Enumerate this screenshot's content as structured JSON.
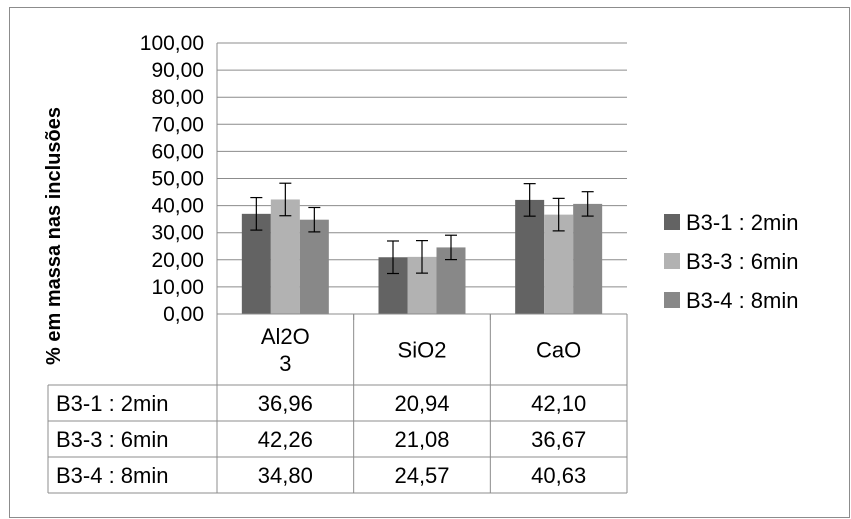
{
  "chart_data": {
    "type": "bar",
    "title": "",
    "ylabel": "% em massa nas inclusões",
    "xlabel": "",
    "ylim": [
      0,
      100
    ],
    "ytick_labels": [
      "0,00",
      "10,00",
      "20,00",
      "30,00",
      "40,00",
      "50,00",
      "60,00",
      "70,00",
      "80,00",
      "90,00",
      "100,00"
    ],
    "categories": [
      [
        "Al2O",
        "3"
      ],
      [
        "SiO2"
      ],
      [
        "CaO"
      ]
    ],
    "series": [
      {
        "name": "B3-1 : 2min",
        "values": [
          36.96,
          20.94,
          42.1
        ],
        "labels": [
          "36,96",
          "20,94",
          "42,10"
        ],
        "error": [
          6,
          6,
          6
        ],
        "color": "#636363"
      },
      {
        "name": "B3-3 : 6min",
        "values": [
          42.26,
          21.08,
          36.67
        ],
        "labels": [
          "42,26",
          "21,08",
          "36,67"
        ],
        "error": [
          6,
          6,
          6
        ],
        "color": "#b2b2b2"
      },
      {
        "name": "B3-4 : 8min",
        "values": [
          34.8,
          24.57,
          40.63
        ],
        "labels": [
          "34,80",
          "24,57",
          "40,63"
        ],
        "error": [
          4.5,
          4.5,
          4.5
        ],
        "color": "#888888"
      }
    ],
    "grid": true,
    "legend_position": "right",
    "data_table": true
  }
}
